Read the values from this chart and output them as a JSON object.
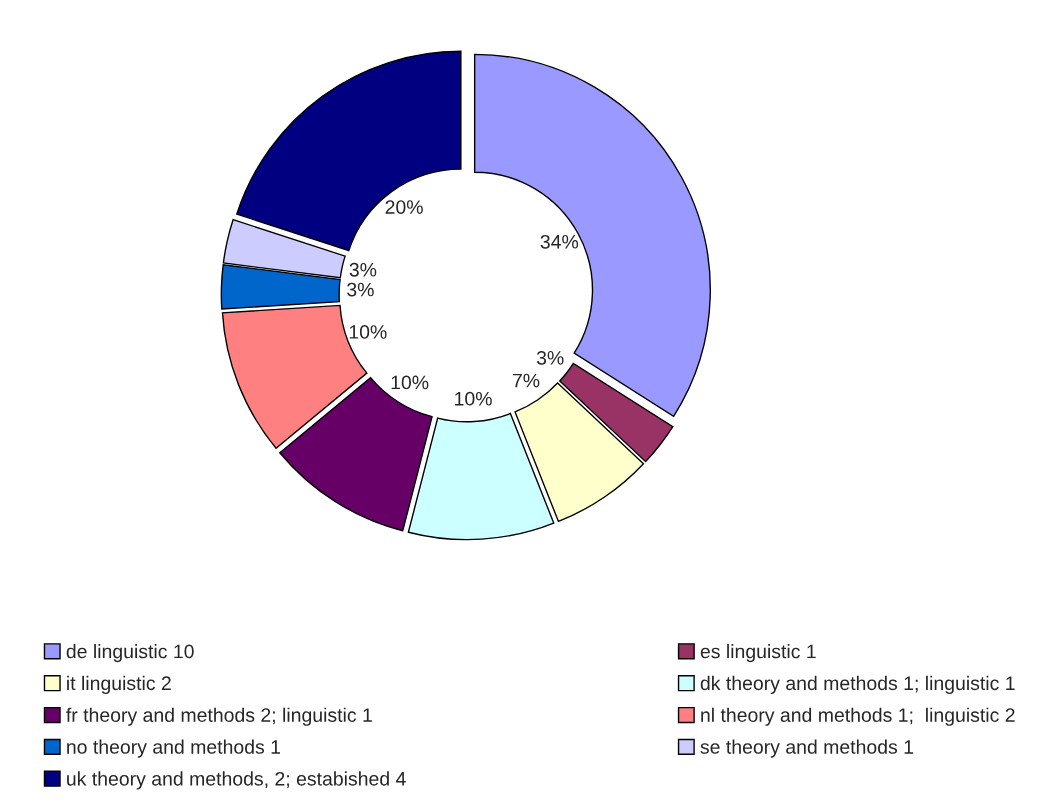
{
  "chart_data": {
    "type": "donut",
    "categories": [
      "de linguistic 10",
      "es linguistic 1",
      "it linguistic 2",
      "dk theory and methods 1; linguistic 1",
      "fr theory and methods 2; linguistic 1",
      "nl theory and methods 1;  linguistic 2",
      "no theory and methods 1",
      "se theory and methods 1",
      "uk theory and methods, 2; estabished 4"
    ],
    "values": [
      34,
      3,
      7,
      10,
      10,
      10,
      3,
      3,
      20
    ],
    "colors": [
      "#9999ff",
      "#993366",
      "#ffffcc",
      "#ccffff",
      "#660066",
      "#ff8080",
      "#0066cc",
      "#ccccff",
      "#000080"
    ],
    "value_labels": [
      "34%",
      "3%",
      "7%",
      "10%",
      "10%",
      "10%",
      "3%",
      "3%",
      "20%"
    ],
    "legend": "bottom"
  }
}
